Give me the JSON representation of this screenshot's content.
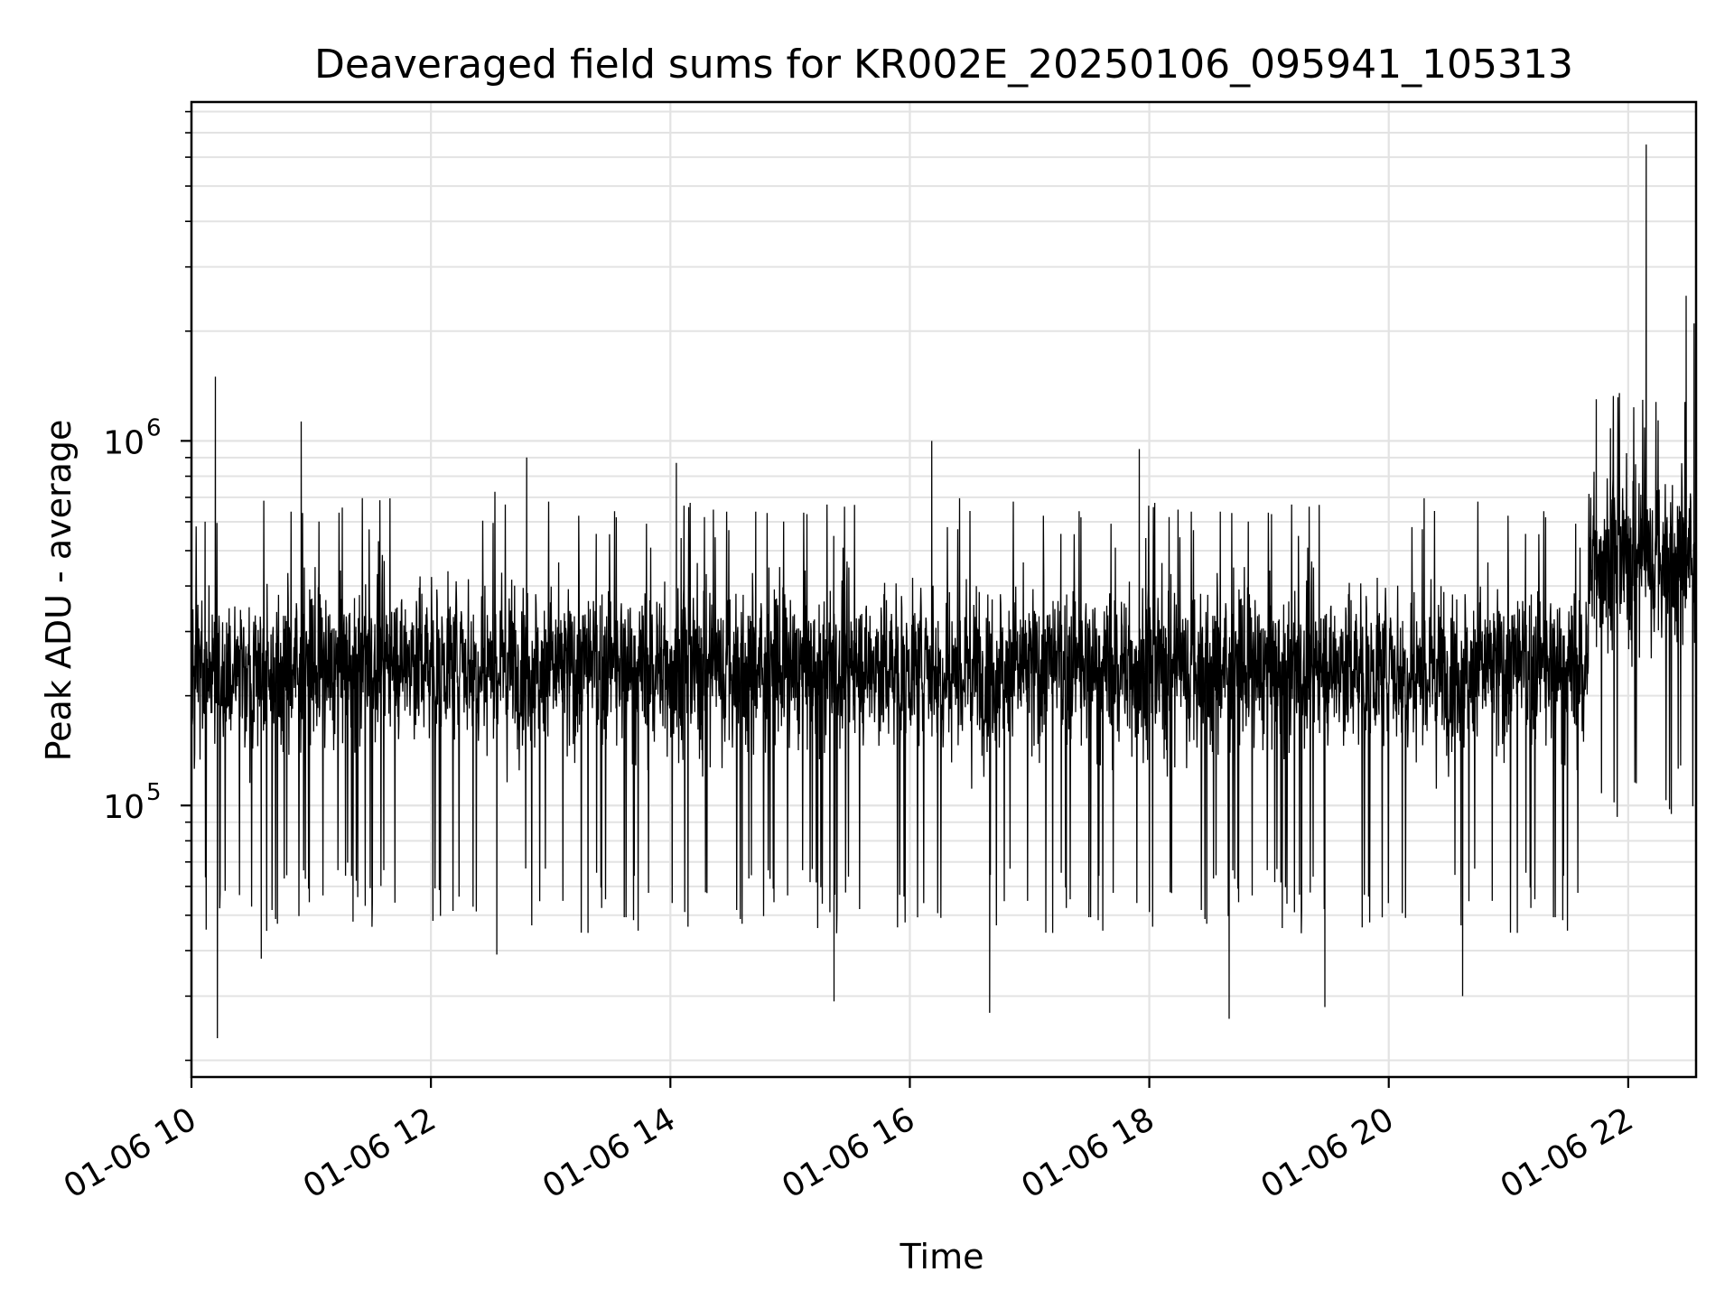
{
  "chart_data": {
    "type": "line",
    "title": "Deaveraged field sums for KR002E_20250106_095941_105313",
    "xlabel": "Time",
    "ylabel": "Peak ADU - average",
    "y_scale": "log",
    "xlim": [
      "2025-01-06 10:00",
      "2025-01-06 22:34"
    ],
    "ylim": [
      18000,
      8500000
    ],
    "x_ticks": [
      "01-06 10",
      "01-06 12",
      "01-06 14",
      "01-06 16",
      "01-06 18",
      "01-06 20",
      "01-06 22"
    ],
    "y_ticks": [
      {
        "value": 100000,
        "base": "10",
        "exp": "5"
      },
      {
        "value": 1000000,
        "base": "10",
        "exp": "6"
      }
    ],
    "grid": true,
    "series": [
      {
        "color": "#000000",
        "segments": [
          {
            "from": "2025-01-06 10:00",
            "to": "2025-01-06 11:15",
            "median": 240000
          },
          {
            "from": "2025-01-06 11:15",
            "to": "2025-01-06 12:50",
            "median": 250000
          },
          {
            "from": "2025-01-06 12:50",
            "to": "2025-01-06 21:40",
            "median": 240000
          },
          {
            "from": "2025-01-06 21:40",
            "to": "2025-01-06 22:34",
            "median": 480000
          }
        ],
        "peaks": [
          {
            "x": "2025-01-06 10:12",
            "y": 1500000
          },
          {
            "x": "2025-01-06 10:55",
            "y": 1130000
          },
          {
            "x": "2025-01-06 12:48",
            "y": 900000
          },
          {
            "x": "2025-01-06 14:03",
            "y": 870000
          },
          {
            "x": "2025-01-06 16:11",
            "y": 1000000
          },
          {
            "x": "2025-01-06 17:55",
            "y": 950000
          },
          {
            "x": "2025-01-06 21:44",
            "y": 1300000
          },
          {
            "x": "2025-01-06 22:09",
            "y": 6500000
          },
          {
            "x": "2025-01-06 22:29",
            "y": 2500000
          },
          {
            "x": "2025-01-06 22:33",
            "y": 2100000
          }
        ],
        "troughs": [
          {
            "x": "2025-01-06 10:13",
            "y": 23000
          },
          {
            "x": "2025-01-06 10:35",
            "y": 38000
          },
          {
            "x": "2025-01-06 12:33",
            "y": 39000
          },
          {
            "x": "2025-01-06 15:22",
            "y": 29000
          },
          {
            "x": "2025-01-06 16:40",
            "y": 27000
          },
          {
            "x": "2025-01-06 18:40",
            "y": 26000
          },
          {
            "x": "2025-01-06 19:28",
            "y": 28000
          },
          {
            "x": "2025-01-06 20:37",
            "y": 30000
          }
        ]
      }
    ]
  }
}
